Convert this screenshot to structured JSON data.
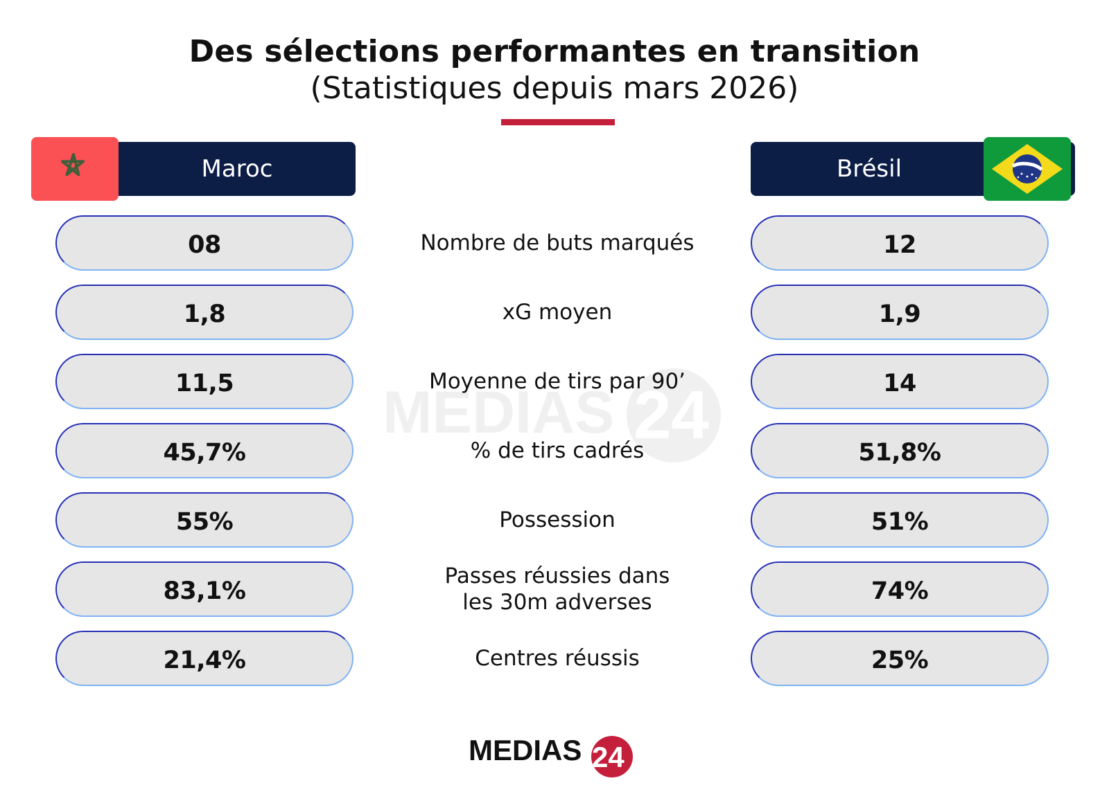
{
  "chart_data": {
    "type": "table",
    "title": "Des sélections performantes en transition",
    "subtitle": "(Statistiques depuis mars 2026)",
    "teams": [
      "Maroc",
      "Brésil"
    ],
    "rows": [
      {
        "label": "Nombre de buts marqués",
        "maroc": "08",
        "bresil": "12"
      },
      {
        "label": "xG moyen",
        "maroc": "1,8",
        "bresil": "1,9"
      },
      {
        "label": "Moyenne de tirs par 90’",
        "maroc": "11,5",
        "bresil": "14"
      },
      {
        "label": "% de tirs cadrés",
        "maroc": "45,7%",
        "bresil": "51,8%"
      },
      {
        "label": "Possession",
        "maroc": "55%",
        "bresil": "51%"
      },
      {
        "label": "Passes réussies dans\nles 30m adverses",
        "maroc": "83,1%",
        "bresil": "74%"
      },
      {
        "label": "Centres réussis",
        "maroc": "21,4%",
        "bresil": "25%"
      }
    ]
  },
  "brand": {
    "watermark_text": "MEDIAS",
    "watermark_number": "24",
    "footer_text": "MEDIAS",
    "footer_number": "24"
  },
  "colors": {
    "navy": "#0c1d46",
    "accent_red": "#c41f3b",
    "pill_fill": "#e6e6e6",
    "pill_border_blue": "#2530b5",
    "pill_border_light": "#7fb3f4",
    "morocco_red": "#fb5054",
    "morocco_star": "#3f5f3a",
    "brazil_green": "#0f9b3c",
    "brazil_yellow": "#f3da1a",
    "brazil_blue": "#1f3586"
  }
}
